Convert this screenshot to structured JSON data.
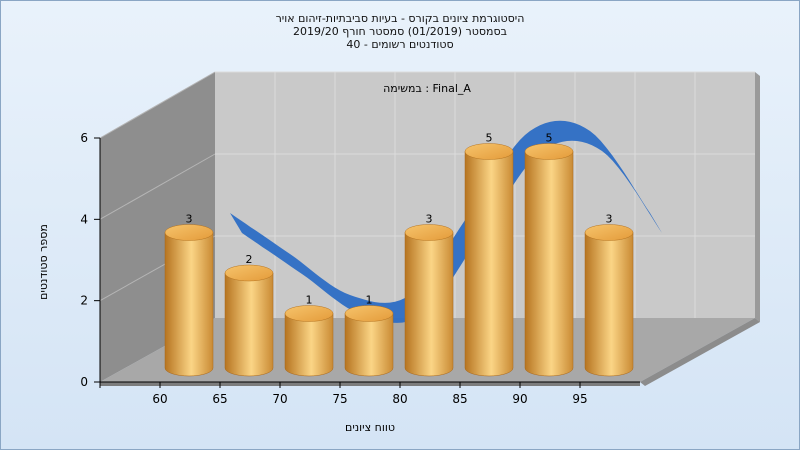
{
  "title_lines": [
    "היסטוגרמת ציונים בקורס - בעיות סביבתיות-זיהום אויר",
    "בסמסטר (01/2019) סמסטר חורף 2019/20",
    "סטודנטים רשומים - 40"
  ],
  "chart_data": {
    "type": "bar",
    "subtitle": "במשימה : Final_A",
    "categories": [
      "60",
      "65",
      "70",
      "75",
      "80",
      "85",
      "90",
      "95"
    ],
    "values": [
      3,
      2,
      1,
      1,
      3,
      5,
      5,
      3
    ],
    "y_ticks": [
      "0",
      "2",
      "4",
      "6"
    ],
    "ylim": [
      0,
      6
    ],
    "xlabel": "טווח ציונים",
    "ylabel": "מספר סטודנטים",
    "trend_line": true,
    "grid": true,
    "colors": {
      "bar_light": "#fbd586",
      "bar_mid": "#eaa84c",
      "bar_dark": "#b67420",
      "trend": "#2f6ec4",
      "back_wall": "#c9c9c9",
      "side_wall": "#8e8e8e",
      "floor": "#a8a8a8"
    }
  }
}
